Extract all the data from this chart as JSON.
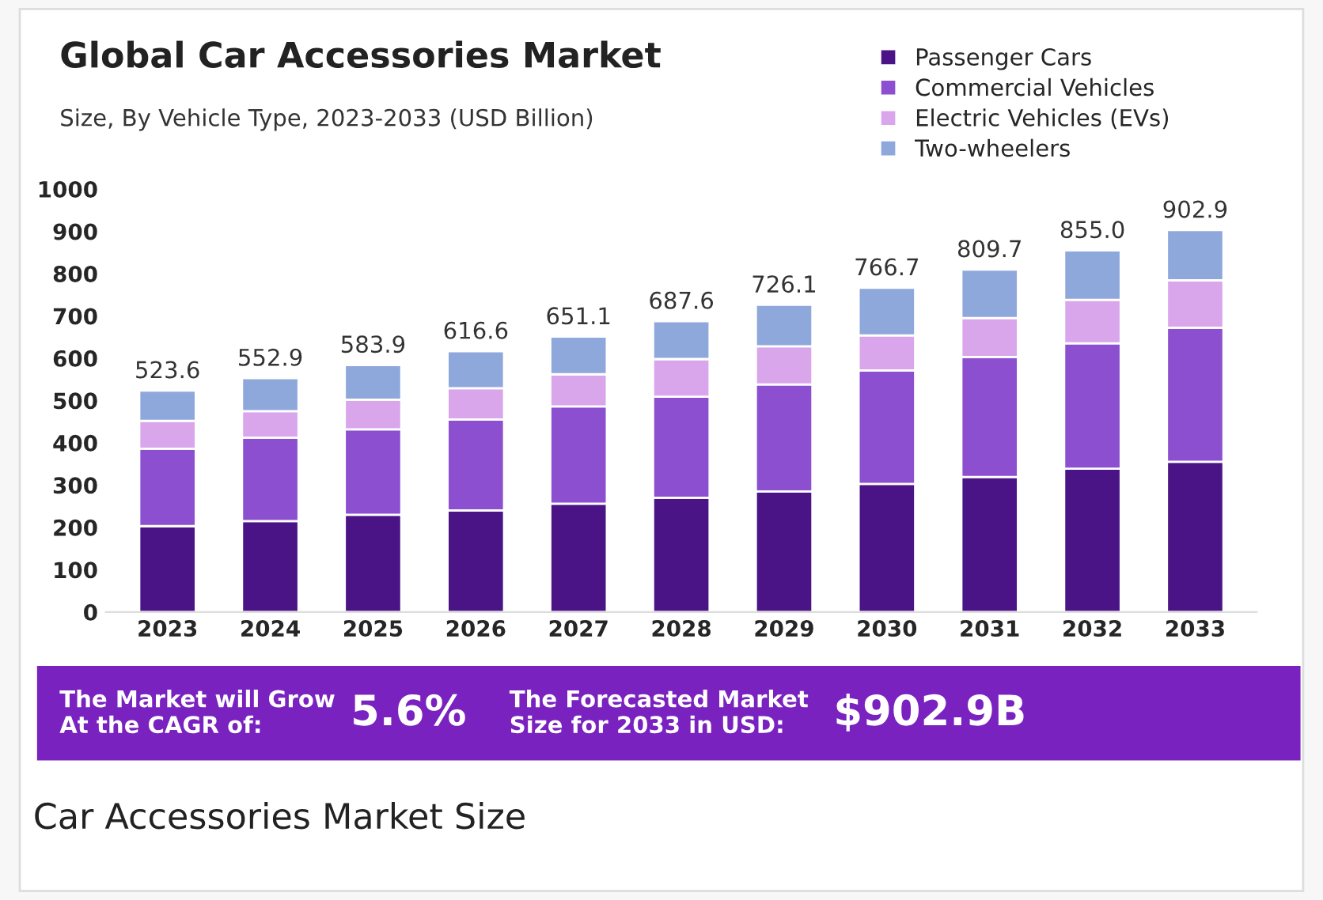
{
  "chart_data": {
    "type": "bar",
    "title": "Global Car Accessories Market",
    "subtitle": "Size, By Vehicle Type, 2023-2033 (USD Billion)",
    "categories": [
      "2023",
      "2024",
      "2025",
      "2026",
      "2027",
      "2028",
      "2029",
      "2030",
      "2031",
      "2032",
      "2033"
    ],
    "stacked": true,
    "series": [
      {
        "name": "Passenger Cars",
        "color": "#4a1486",
        "values": [
          203,
          215,
          230,
          240,
          256,
          270,
          285,
          303,
          319,
          339,
          355
        ]
      },
      {
        "name": "Commercial Vehicles",
        "color": "#8b4fcf",
        "values": [
          183,
          197,
          202,
          215,
          230,
          239,
          253,
          268,
          284,
          296,
          317
        ]
      },
      {
        "name": "Electric Vehicles (EVs)",
        "color": "#d9a6ec",
        "values": [
          66,
          63,
          70,
          74,
          76,
          89,
          90,
          83,
          92,
          103,
          112
        ]
      },
      {
        "name": "Two-wheelers",
        "color": "#8fa8dc",
        "values": [
          71.6,
          77.9,
          81.9,
          87.6,
          89.1,
          89.6,
          98.1,
          112.7,
          114.7,
          117,
          118.9
        ]
      }
    ],
    "totals": [
      "523.6",
      "552.9",
      "583.9",
      "616.6",
      "651.1",
      "687.6",
      "726.1",
      "766.7",
      "809.7",
      "855.0",
      "902.9"
    ],
    "ylim": [
      0,
      1000
    ],
    "yticks": [
      0,
      100,
      200,
      300,
      400,
      500,
      600,
      700,
      800,
      900,
      1000
    ],
    "grid": false,
    "legend": "top right",
    "annotations": [
      "The Market will Grow\nAt the CAGR of:",
      "5.6%",
      "The Forecasted Market\nSize for 2033 in USD:",
      "$902.9B",
      "Car Accessories Market Size"
    ]
  }
}
